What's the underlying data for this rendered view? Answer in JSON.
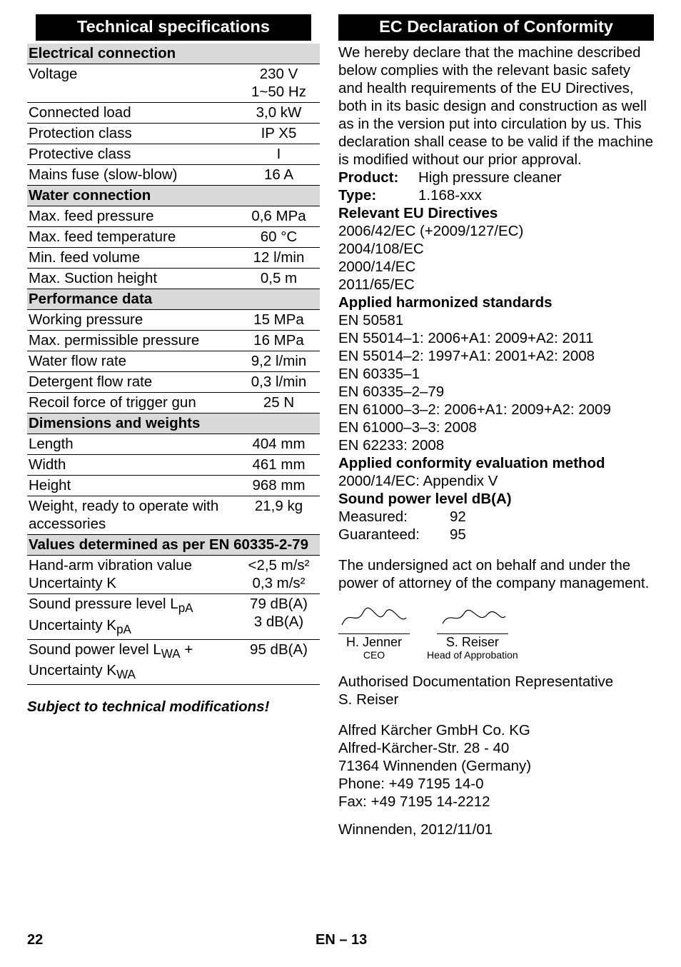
{
  "left": {
    "heading": "Technical specifications",
    "sections": [
      {
        "type": "sub",
        "label": "Electrical connection"
      },
      {
        "type": "row2",
        "label": "Voltage",
        "v1": "230 V",
        "v2": "1~50 Hz"
      },
      {
        "type": "row",
        "label": "Connected load",
        "val": "3,0 kW"
      },
      {
        "type": "row",
        "label": "Protection class",
        "val": "IP X5"
      },
      {
        "type": "row",
        "label": "Protective class",
        "val": "I"
      },
      {
        "type": "row",
        "label": "Mains fuse (slow-blow)",
        "val": "16 A"
      },
      {
        "type": "sub",
        "label": "Water connection"
      },
      {
        "type": "row",
        "label": "Max. feed pressure",
        "val": "0,6 MPa"
      },
      {
        "type": "row",
        "label": "Max. feed temperature",
        "val": "60 °C"
      },
      {
        "type": "row",
        "label": "Min. feed volume",
        "val": "12 l/min"
      },
      {
        "type": "row",
        "label": "Max. Suction height",
        "val": "0,5 m"
      },
      {
        "type": "sub",
        "label": "Performance data"
      },
      {
        "type": "row",
        "label": "Working pressure",
        "val": "15 MPa"
      },
      {
        "type": "row",
        "label": "Max. permissible pressure",
        "val": "16 MPa"
      },
      {
        "type": "row",
        "label": "Water flow rate",
        "val": "9,2 l/min"
      },
      {
        "type": "row",
        "label": "Detergent flow rate",
        "val": "0,3 l/min"
      },
      {
        "type": "row",
        "label": "Recoil force of trigger gun",
        "val": "25 N"
      },
      {
        "type": "sub",
        "label": "Dimensions and weights"
      },
      {
        "type": "row",
        "label": "Length",
        "val": "404 mm"
      },
      {
        "type": "row",
        "label": "Width",
        "val": "461 mm"
      },
      {
        "type": "row",
        "label": "Height",
        "val": "968 mm"
      },
      {
        "type": "row",
        "label": "Weight, ready to operate with accessories",
        "val": "21,9 kg"
      },
      {
        "type": "sub",
        "label": "Values determined as per EN 60335-2-79"
      },
      {
        "type": "row2",
        "label": "Hand-arm vibration value\nUncertainty K",
        "v1": "<2,5 m/s²",
        "v2": "0,3 m/s²"
      },
      {
        "type": "row2",
        "label": "Sound pressure level LpA\nUncertainty KpA",
        "v1": "79 dB(A)",
        "v2": "3 dB(A)"
      },
      {
        "type": "row",
        "label": "Sound power level LWA + Uncertainty KWA",
        "val": "95 dB(A)"
      }
    ],
    "note": "Subject to technical modifications!"
  },
  "right": {
    "heading": "EC Declaration of Conformity",
    "intro": "We hereby declare that the machine described below complies with the relevant basic safety and health requirements of the EU Directives, both in its basic design and construction as well as in the version put into circulation by us. This declaration shall cease to be valid if the machine is modified without our prior approval.",
    "product_k": "Product:",
    "product_v": "High pressure cleaner",
    "type_k": "Type:",
    "type_v": "1.168-xxx",
    "directives_h": "Relevant EU Directives",
    "directives": [
      "2006/42/EC (+2009/127/EC)",
      "2004/108/EC",
      "2000/14/EC",
      "2011/65/EC"
    ],
    "standards_h": "Applied harmonized standards",
    "standards": [
      "EN 50581",
      "EN 55014–1: 2006+A1: 2009+A2: 2011",
      "EN 55014–2: 1997+A1: 2001+A2: 2008",
      "EN 60335–1",
      "EN 60335–2–79",
      "EN 61000–3–2: 2006+A1: 2009+A2: 2009",
      "EN 61000–3–3: 2008",
      "EN 62233: 2008"
    ],
    "conf_h": "Applied conformity evaluation method",
    "conf": "2000/14/EC: Appendix V",
    "sound_h": "Sound power level dB(A)",
    "measured_k": "Measured:",
    "measured_v": "92",
    "guaranteed_k": "Guaranteed:",
    "guaranteed_v": "95",
    "undersigned": "The undersigned act on behalf and under the power of attorney of the company management.",
    "sig1_name": "H. Jenner",
    "sig1_role": "CEO",
    "sig2_name": "S. Reiser",
    "sig2_role": "Head of Approbation",
    "auth": "Authorised Documentation Representative",
    "auth_name": "S. Reiser",
    "addr": [
      "Alfred Kärcher GmbH Co. KG",
      "Alfred-Kärcher-Str. 28 - 40",
      "71364 Winnenden (Germany)",
      "Phone: +49 7195 14-0",
      "Fax: +49 7195 14-2212"
    ],
    "date": "Winnenden, 2012/11/01"
  },
  "footer": {
    "page": "22",
    "code": "EN – 13"
  },
  "style": {
    "fontsize_body": 20.5,
    "fontsize_heading": 23.5,
    "bg_heading": "#000000",
    "fg_heading": "#ffffff",
    "bg_sub": "#d9d9d9",
    "border": "#000000"
  }
}
